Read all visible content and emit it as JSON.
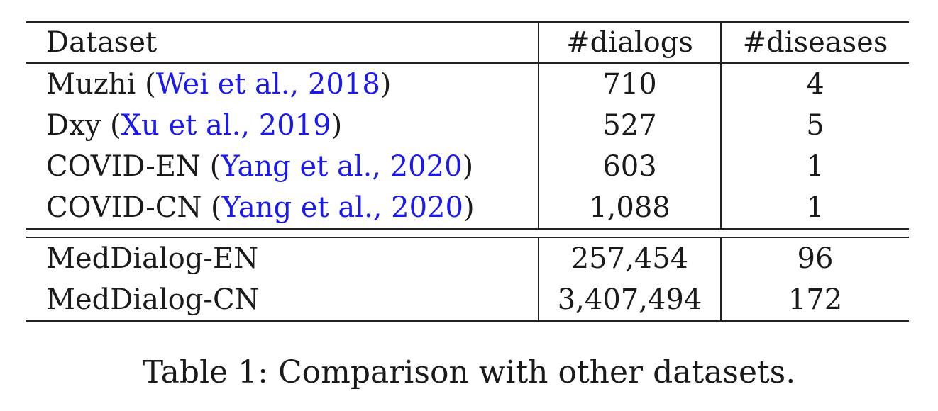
{
  "table": {
    "headers": [
      "Dataset",
      "#dialogs",
      "#diseases"
    ],
    "prior_rows": [
      {
        "name": "Muzhi",
        "citation": "Wei et al., 2018",
        "dialogs": "710",
        "diseases": "4"
      },
      {
        "name": "Dxy",
        "citation": "Xu et al., 2019",
        "dialogs": "527",
        "diseases": "5"
      },
      {
        "name": "COVID-EN",
        "citation": "Yang et al., 2020",
        "dialogs": "603",
        "diseases": "1"
      },
      {
        "name": "COVID-CN",
        "citation": "Yang et al., 2020",
        "dialogs": "1,088",
        "diseases": "1"
      }
    ],
    "our_rows": [
      {
        "name": "MedDialog-EN",
        "dialogs": "257,454",
        "diseases": "96"
      },
      {
        "name": "MedDialog-CN",
        "dialogs": "3,407,494",
        "diseases": "172"
      }
    ]
  },
  "caption": "Table 1: Comparison with other datasets.",
  "colors": {
    "citation": "#1a1aee",
    "text": "#1a1a1a",
    "rule": "#222222"
  }
}
